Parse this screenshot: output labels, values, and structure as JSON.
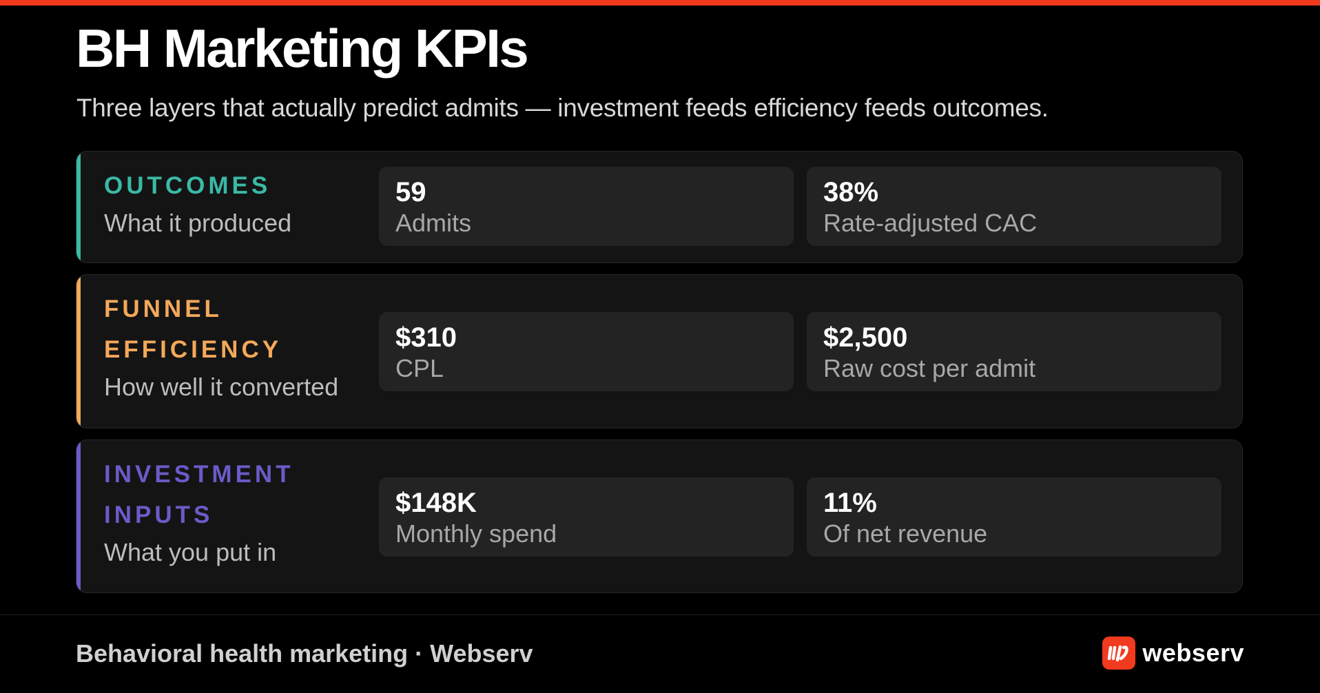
{
  "header": {
    "title": "BH Marketing KPIs",
    "subtitle": "Three layers that actually predict admits — investment feeds efficiency feeds outcomes."
  },
  "colors": {
    "accent_red": "#f23a1e",
    "outcomes": "#3ab9a6",
    "funnel": "#f4a85a",
    "investment": "#6a5bc9"
  },
  "layers": [
    {
      "title_lines": [
        "OUTCOMES"
      ],
      "description": "What it produced",
      "metrics": [
        {
          "value": "59",
          "label": "Admits"
        },
        {
          "value": "38%",
          "label": "Rate-adjusted CAC"
        }
      ]
    },
    {
      "title_lines": [
        "FUNNEL",
        "EFFICIENCY"
      ],
      "description": "How well it converted",
      "metrics": [
        {
          "value": "$310",
          "label": "CPL"
        },
        {
          "value": "$2,500",
          "label": "Raw cost per admit"
        }
      ]
    },
    {
      "title_lines": [
        "INVESTMENT",
        "INPUTS"
      ],
      "description": "What you put in",
      "metrics": [
        {
          "value": "$148K",
          "label": "Monthly spend"
        },
        {
          "value": "11%",
          "label": "Of net revenue"
        }
      ]
    }
  ],
  "footer": {
    "text": "Behavioral health marketing · Webserv",
    "brand_name": "webserv",
    "brand_icon": "webserv-logo-icon"
  }
}
